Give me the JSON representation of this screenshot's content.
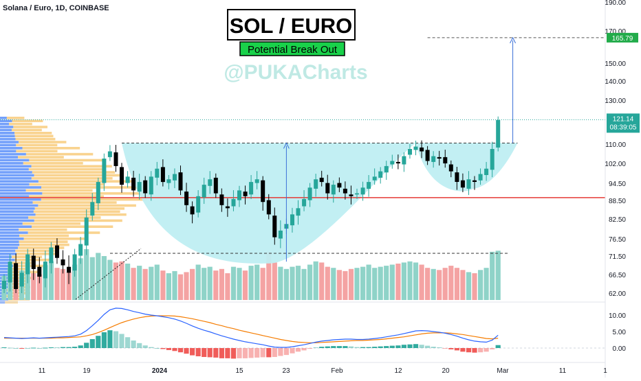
{
  "header": {
    "symbol_line": "Solana / Euro, 1D, COINBASE"
  },
  "annotations": {
    "title": "SOL / EURO",
    "subtitle": "Potential Break Out",
    "watermark": "@PUKACharts"
  },
  "badges": {
    "target": "165.79",
    "last_price": "121.14",
    "countdown": "08:39:05"
  },
  "colors": {
    "up": "#26a69a",
    "down": "#000000",
    "vol_up": "#8fd3c8",
    "vol_down": "#f4a3a3",
    "cup_fill": "#bfeef2",
    "support_line": "#e53935",
    "macd_line": "#2962ff",
    "signal_line": "#f57c00",
    "hist_up": "#26a69a",
    "hist_down": "#ef5350",
    "vp_up": "#5b8ff9",
    "vp_down": "#f7c873",
    "target_badge": "#22ab4a",
    "arrow": "#3a6fd8"
  },
  "chart_data": [
    {
      "type": "candlestick",
      "ylim": [
        60,
        190
      ],
      "x_ticks": [
        "11",
        "19",
        "2024",
        "15",
        "23",
        "Feb",
        "12",
        "20",
        "Mar",
        "11",
        "1"
      ],
      "y_ticks": [
        "190.00",
        "170.00",
        "150.00",
        "140.00",
        "130.00",
        "110.00",
        "102.00",
        "94.50",
        "88.50",
        "82.50",
        "76.50",
        "71.50",
        "66.50",
        "62.00"
      ],
      "y_tick_values": [
        190,
        170,
        150,
        140,
        130,
        110,
        102,
        94.5,
        88.5,
        82.5,
        76.5,
        71.5,
        66.5,
        62
      ],
      "levels": {
        "resistance": 110.5,
        "support": 89.5,
        "target": 165.79,
        "last": 121.14
      },
      "closes": [
        65,
        70,
        63,
        67,
        72,
        68,
        66,
        70,
        74,
        71,
        69,
        67,
        72,
        75,
        83,
        88,
        95,
        104,
        107,
        101,
        94,
        97,
        92,
        95,
        91,
        97,
        100,
        95,
        96,
        98,
        92,
        87,
        84,
        90,
        94,
        96,
        91,
        87,
        86,
        89,
        92,
        90,
        95,
        96,
        88,
        84,
        77,
        79,
        81,
        84,
        86,
        89,
        93,
        96,
        95,
        91,
        94,
        93,
        91,
        90,
        91,
        93,
        95,
        97,
        99,
        101,
        103,
        102,
        105,
        108,
        109,
        107,
        103,
        105,
        104,
        102,
        99,
        95,
        93,
        96,
        95,
        98,
        100,
        108,
        121
      ]
    },
    {
      "type": "bar",
      "name": "Volume",
      "values": [
        45,
        60,
        40,
        55,
        70,
        50,
        48,
        65,
        72,
        60,
        58,
        52,
        66,
        78,
        95,
        80,
        88,
        82,
        75,
        70,
        72,
        68,
        60,
        64,
        58,
        62,
        66,
        55,
        50,
        54,
        48,
        52,
        58,
        66,
        60,
        62,
        55,
        58,
        50,
        62,
        60,
        55,
        64,
        66,
        60,
        90,
        70,
        62,
        58,
        62,
        64,
        58,
        66,
        72,
        70,
        62,
        60,
        56,
        54,
        58,
        60,
        62,
        66,
        60,
        62,
        64,
        66,
        68,
        70,
        72,
        70,
        66,
        60,
        58,
        56,
        60,
        64,
        60,
        56,
        52,
        50,
        56,
        60,
        90,
        92
      ]
    },
    {
      "type": "line",
      "name": "MACD",
      "ylim": [
        -3,
        13
      ],
      "y_ticks": [
        "10.00",
        "5.00",
        "0.00"
      ],
      "y_tick_values": [
        10,
        5,
        0
      ],
      "series": [
        {
          "name": "macd",
          "values": [
            3.2,
            3.1,
            3.0,
            2.9,
            3.0,
            3.1,
            3.0,
            3.1,
            3.2,
            3.3,
            3.4,
            3.5,
            3.7,
            4.2,
            5.3,
            6.8,
            8.4,
            10.2,
            11.6,
            12.1,
            12.0,
            11.6,
            11.1,
            10.7,
            10.3,
            10.0,
            9.8,
            9.5,
            9.2,
            8.8,
            8.2,
            7.5,
            6.7,
            6.0,
            5.4,
            4.9,
            4.3,
            3.7,
            3.2,
            2.7,
            2.3,
            1.9,
            1.6,
            1.3,
            1.0,
            0.6,
            0.3,
            0.2,
            0.2,
            0.4,
            0.7,
            1.0,
            1.4,
            1.8,
            2.1,
            2.3,
            2.5,
            2.6,
            2.7,
            2.7,
            2.6,
            2.6,
            2.7,
            2.9,
            3.1,
            3.4,
            3.7,
            4.0,
            4.4,
            4.8,
            5.2,
            5.3,
            5.2,
            5.0,
            4.8,
            4.5,
            4.1,
            3.6,
            3.0,
            2.5,
            2.1,
            1.9,
            1.8,
            2.4,
            3.9
          ]
        },
        {
          "name": "signal",
          "values": [
            3.0,
            3.0,
            3.0,
            3.0,
            3.0,
            3.0,
            3.0,
            3.0,
            3.0,
            3.1,
            3.1,
            3.2,
            3.3,
            3.4,
            3.7,
            4.1,
            4.7,
            5.4,
            6.2,
            7.0,
            7.7,
            8.3,
            8.8,
            9.2,
            9.5,
            9.7,
            9.8,
            9.8,
            9.8,
            9.7,
            9.5,
            9.2,
            8.9,
            8.5,
            8.1,
            7.7,
            7.2,
            6.8,
            6.3,
            5.9,
            5.4,
            5.0,
            4.6,
            4.2,
            3.8,
            3.4,
            3.0,
            2.6,
            2.3,
            2.0,
            1.8,
            1.7,
            1.6,
            1.6,
            1.7,
            1.8,
            1.9,
            2.0,
            2.1,
            2.2,
            2.3,
            2.3,
            2.4,
            2.5,
            2.6,
            2.8,
            3.0,
            3.2,
            3.4,
            3.7,
            4.0,
            4.3,
            4.5,
            4.6,
            4.6,
            4.6,
            4.5,
            4.3,
            4.1,
            3.8,
            3.5,
            3.2,
            2.9,
            2.8,
            3.0
          ]
        }
      ]
    }
  ]
}
